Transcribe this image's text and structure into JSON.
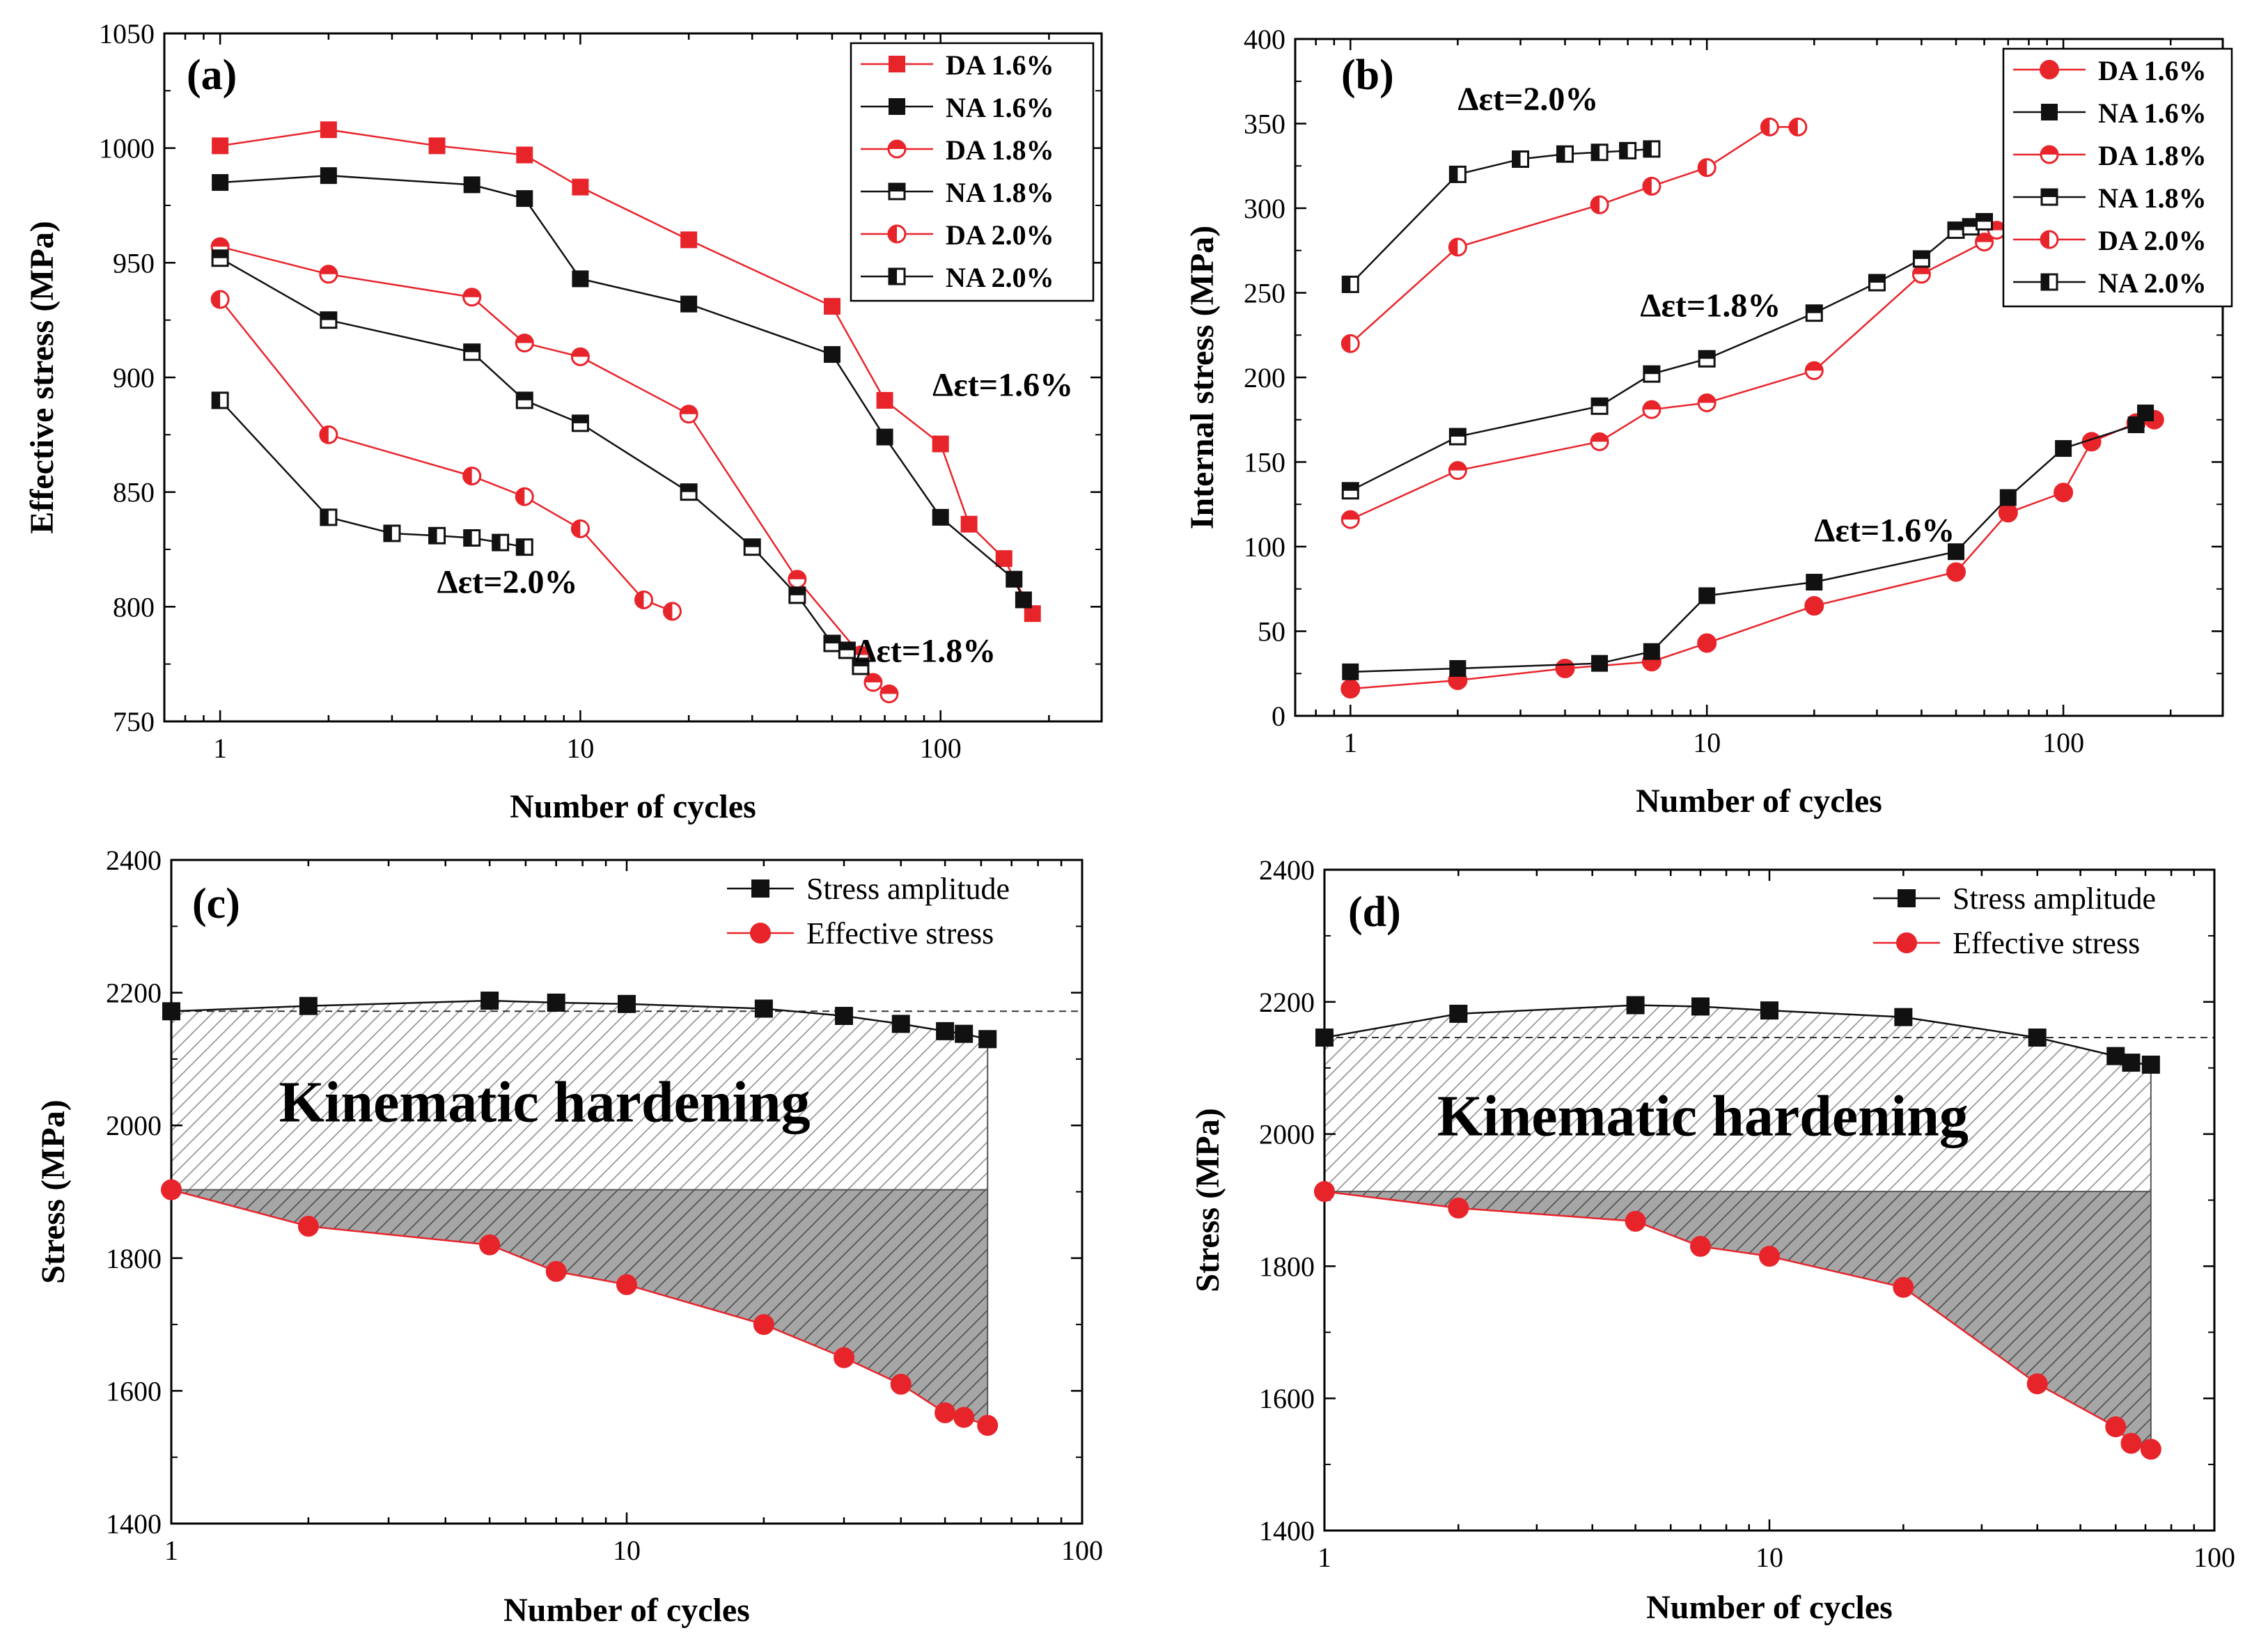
{
  "colors": {
    "red": "#e8242b",
    "black": "#111111",
    "hatch_gray": "#999999",
    "shade_gray": "#a6a6a6"
  },
  "chart_data": [
    {
      "panel": "(a)",
      "type": "line",
      "xscale": "log",
      "xlim": [
        0.7,
        280
      ],
      "ylim": [
        750,
        1050
      ],
      "xticks": [
        1,
        10,
        100
      ],
      "xtick_labels": [
        "1",
        "10",
        "100"
      ],
      "yticks": [
        750,
        800,
        850,
        900,
        950,
        1000,
        1050
      ],
      "ytick_labels": [
        "750",
        "800",
        "850",
        "900",
        "950",
        "1000",
        "1050"
      ],
      "xlabel": "Number of cycles",
      "ylabel": "Effective stress (MPa)",
      "legend_position": "top-right",
      "series": [
        {
          "name": "DA 1.6%",
          "color": "red",
          "marker": "square-filled",
          "x": [
            1,
            2,
            4,
            7,
            10,
            20,
            50,
            70,
            100,
            120,
            150,
            180
          ],
          "y": [
            1001,
            1008,
            1001,
            997,
            983,
            960,
            931,
            890,
            871,
            836,
            821,
            797
          ]
        },
        {
          "name": "NA 1.6%",
          "color": "black",
          "marker": "square-filled",
          "x": [
            1,
            2,
            5,
            7,
            10,
            20,
            50,
            70,
            100,
            160,
            170
          ],
          "y": [
            985,
            988,
            984,
            978,
            943,
            932,
            910,
            874,
            839,
            812,
            803
          ]
        },
        {
          "name": "DA 1.8%",
          "color": "red",
          "marker": "circle-half-top",
          "x": [
            1,
            2,
            5,
            7,
            10,
            20,
            40,
            60,
            65,
            72
          ],
          "y": [
            957,
            945,
            935,
            915,
            909,
            884,
            812,
            779,
            767,
            762
          ]
        },
        {
          "name": "NA 1.8%",
          "color": "black",
          "marker": "square-half-top",
          "x": [
            1,
            2,
            5,
            7,
            10,
            20,
            30,
            40,
            50,
            55,
            60
          ],
          "y": [
            952,
            925,
            911,
            890,
            880,
            850,
            826,
            805,
            784,
            781,
            774
          ]
        },
        {
          "name": "DA 2.0%",
          "color": "red",
          "marker": "circle-half-left",
          "x": [
            1,
            2,
            5,
            7,
            10,
            15,
            18
          ],
          "y": [
            934,
            875,
            857,
            848,
            834,
            803,
            798
          ]
        },
        {
          "name": "NA 2.0%",
          "color": "black",
          "marker": "square-half-left",
          "x": [
            1,
            2,
            3,
            4,
            5,
            6,
            7
          ],
          "y": [
            890,
            839,
            832,
            831,
            830,
            828,
            826
          ]
        }
      ],
      "annotations": [
        {
          "text": "Δεt=1.6%",
          "x": 95,
          "y": 892
        },
        {
          "text": "Δεt=1.8%",
          "x": 58,
          "y": 776
        },
        {
          "text": "Δεt=2.0%",
          "x": 4.0,
          "y": 806
        }
      ]
    },
    {
      "panel": "(b)",
      "type": "line",
      "xscale": "log",
      "xlim": [
        0.7,
        280
      ],
      "ylim": [
        0,
        400
      ],
      "xticks": [
        1,
        10,
        100
      ],
      "xtick_labels": [
        "1",
        "10",
        "100"
      ],
      "yticks": [
        0,
        50,
        100,
        150,
        200,
        250,
        300,
        350,
        400
      ],
      "ytick_labels": [
        "0",
        "50",
        "100",
        "150",
        "200",
        "250",
        "300",
        "350",
        "400"
      ],
      "xlabel": "Number of cycles",
      "ylabel": "Internal stress (MPa)",
      "legend_position": "top-right",
      "series": [
        {
          "name": "DA 1.6%",
          "color": "red",
          "marker": "circle-filled",
          "x": [
            1,
            2,
            4,
            7,
            10,
            20,
            50,
            70,
            100,
            120,
            160,
            180
          ],
          "y": [
            16,
            21,
            28,
            32,
            43,
            65,
            85,
            120,
            132,
            162,
            173,
            175
          ]
        },
        {
          "name": "NA 1.6%",
          "color": "black",
          "marker": "square-filled",
          "x": [
            1,
            2,
            5,
            7,
            10,
            20,
            50,
            70,
            100,
            160,
            170
          ],
          "y": [
            26,
            28,
            31,
            38,
            71,
            79,
            97,
            129,
            158,
            172,
            179
          ]
        },
        {
          "name": "DA 1.8%",
          "color": "red",
          "marker": "circle-half-top",
          "x": [
            1,
            2,
            5,
            7,
            10,
            20,
            40,
            60,
            65,
            72
          ],
          "y": [
            116,
            145,
            162,
            181,
            185,
            204,
            261,
            280,
            287,
            291
          ]
        },
        {
          "name": "NA 1.8%",
          "color": "black",
          "marker": "square-half-top",
          "x": [
            1,
            2,
            5,
            7,
            10,
            20,
            30,
            40,
            50,
            55,
            60
          ],
          "y": [
            133,
            165,
            183,
            202,
            211,
            238,
            256,
            270,
            287,
            289,
            292
          ]
        },
        {
          "name": "DA 2.0%",
          "color": "red",
          "marker": "circle-half-left",
          "x": [
            1,
            2,
            5,
            7,
            10,
            15,
            18
          ],
          "y": [
            220,
            277,
            302,
            313,
            324,
            348,
            348
          ]
        },
        {
          "name": "NA 2.0%",
          "color": "black",
          "marker": "square-half-left",
          "x": [
            1,
            2,
            3,
            4,
            5,
            6,
            7
          ],
          "y": [
            255,
            320,
            329,
            332,
            333,
            334,
            335
          ]
        }
      ],
      "annotations": [
        {
          "text": "Δεt=2.0%",
          "x": 2.0,
          "y": 358
        },
        {
          "text": "Δεt=1.8%",
          "x": 6.5,
          "y": 236
        },
        {
          "text": "Δεt=1.6%",
          "x": 20,
          "y": 103
        }
      ]
    },
    {
      "panel": "(c)",
      "type": "line",
      "xscale": "log",
      "xlim": [
        1,
        100
      ],
      "ylim": [
        1400,
        2400
      ],
      "xticks": [
        1,
        10,
        100
      ],
      "xtick_labels": [
        "1",
        "10",
        "100"
      ],
      "yticks": [
        1400,
        1600,
        1800,
        2000,
        2200,
        2400
      ],
      "ytick_labels": [
        "1400",
        "1600",
        "1800",
        "2000",
        "2200",
        "2400"
      ],
      "xlabel": "Number of cycles",
      "ylabel": "Stress (MPa)",
      "legend_position": "top-right",
      "reference_line": 2172,
      "shading_boundary": 1903,
      "region_label": "Kinematic hardening",
      "series": [
        {
          "name": "Stress amplitude",
          "color": "black",
          "marker": "square-filled",
          "x": [
            1,
            2,
            5,
            7,
            10,
            20,
            30,
            40,
            50,
            55,
            62
          ],
          "y": [
            2172,
            2180,
            2188,
            2185,
            2183,
            2176,
            2165,
            2153,
            2142,
            2138,
            2130
          ]
        },
        {
          "name": "Effective stress",
          "color": "red",
          "marker": "circle-filled",
          "x": [
            1,
            2,
            5,
            7,
            10,
            20,
            30,
            40,
            50,
            55,
            62
          ],
          "y": [
            1903,
            1848,
            1820,
            1780,
            1760,
            1700,
            1650,
            1610,
            1567,
            1560,
            1548
          ]
        }
      ]
    },
    {
      "panel": "(d)",
      "type": "line",
      "xscale": "log",
      "xlim": [
        1,
        100
      ],
      "ylim": [
        1400,
        2400
      ],
      "xticks": [
        1,
        10,
        100
      ],
      "xtick_labels": [
        "1",
        "10",
        "100"
      ],
      "yticks": [
        1400,
        1600,
        1800,
        2000,
        2200,
        2400
      ],
      "ytick_labels": [
        "1400",
        "1600",
        "1800",
        "2000",
        "2200",
        "2400"
      ],
      "xlabel": "Number of cycles",
      "ylabel": "Stress (MPa)",
      "legend_position": "top-right",
      "reference_line": 2146,
      "shading_boundary": 1913,
      "region_label": "Kinematic hardening",
      "series": [
        {
          "name": "Stress amplitude",
          "color": "black",
          "marker": "square-filled",
          "x": [
            1,
            2,
            5,
            7,
            10,
            20,
            40,
            60,
            65,
            72
          ],
          "y": [
            2146,
            2182,
            2195,
            2193,
            2187,
            2177,
            2146,
            2118,
            2108,
            2105
          ]
        },
        {
          "name": "Effective stress",
          "color": "red",
          "marker": "circle-filled",
          "x": [
            1,
            2,
            5,
            7,
            10,
            20,
            40,
            60,
            65,
            72
          ],
          "y": [
            1913,
            1888,
            1868,
            1830,
            1815,
            1768,
            1622,
            1557,
            1532,
            1523
          ]
        }
      ]
    }
  ]
}
